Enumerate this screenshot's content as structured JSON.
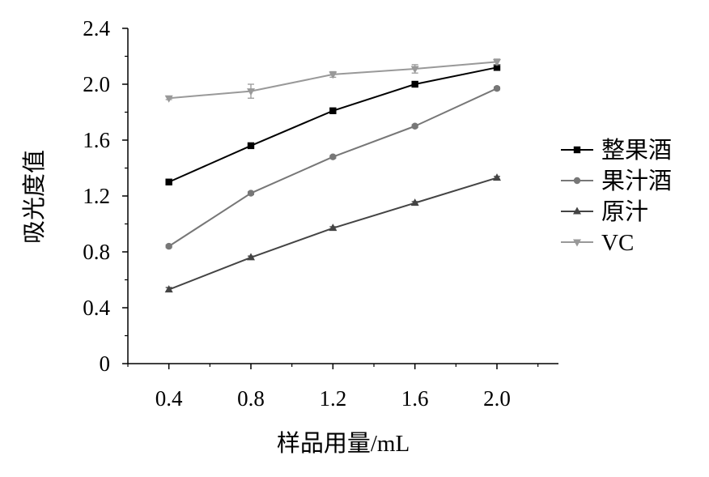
{
  "chart_data": {
    "type": "line",
    "title": "",
    "xlabel": "样品用量/mL",
    "ylabel": "吸光度值",
    "x": [
      0.4,
      0.8,
      1.2,
      1.6,
      2.0
    ],
    "x_tick_labels": [
      "0.4",
      "0.8",
      "1.2",
      "1.6",
      "2.0"
    ],
    "y_tick_labels": [
      "0",
      "0.4",
      "0.8",
      "1.2",
      "1.6",
      "2.0",
      "2.4"
    ],
    "y_ticks": [
      0,
      0.4,
      0.8,
      1.2,
      1.6,
      2.0,
      2.4
    ],
    "xlim": [
      0.2,
      2.3
    ],
    "ylim": [
      0,
      2.4
    ],
    "grid": false,
    "legend_position": "right",
    "series": [
      {
        "name": "整果酒",
        "values": [
          1.3,
          1.56,
          1.81,
          2.0,
          2.12
        ],
        "errors": [
          0.01,
          0.01,
          0.015,
          0.015,
          0.02
        ],
        "color": "#000000",
        "marker": "square"
      },
      {
        "name": "果汁酒",
        "values": [
          0.84,
          1.22,
          1.48,
          1.7,
          1.97
        ],
        "errors": [
          0.01,
          0.01,
          0.01,
          0.01,
          0.01
        ],
        "color": "#777777",
        "marker": "circle"
      },
      {
        "name": "原汁",
        "values": [
          0.53,
          0.76,
          0.97,
          1.15,
          1.33
        ],
        "errors": [
          0.015,
          0.01,
          0.01,
          0.01,
          0.01
        ],
        "color": "#444444",
        "marker": "triangle-up"
      },
      {
        "name": "VC",
        "values": [
          1.9,
          1.95,
          2.07,
          2.11,
          2.16
        ],
        "errors": [
          0.01,
          0.05,
          0.02,
          0.03,
          0.02
        ],
        "color": "#999999",
        "marker": "triangle-down"
      }
    ]
  }
}
